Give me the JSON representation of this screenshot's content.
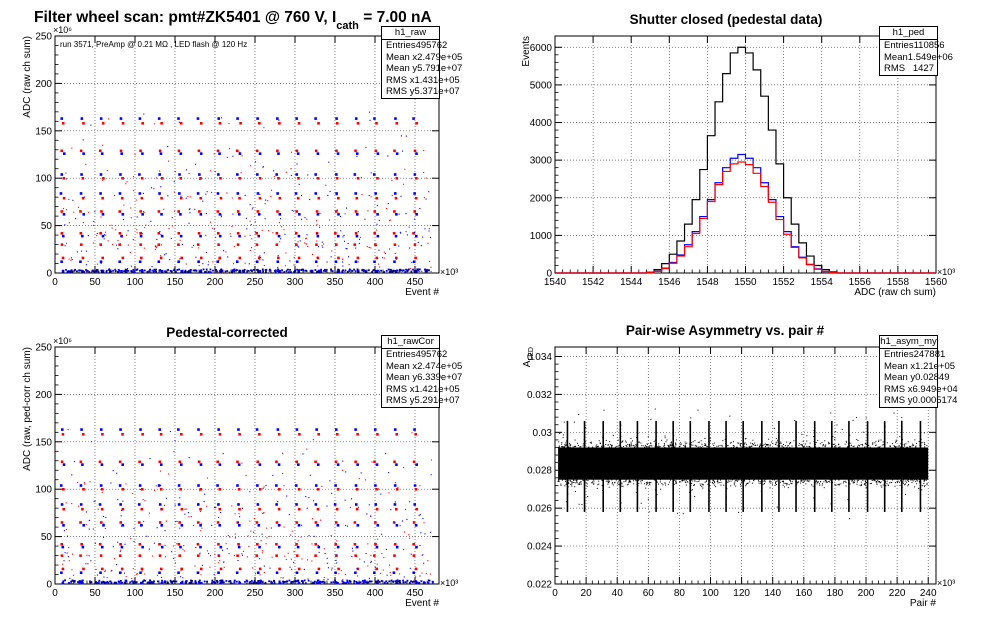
{
  "page": {
    "main_title": "Filter wheel scan: pmt#ZK5401 @   760 V, I",
    "main_title_sub": "cath",
    "main_title_tail": " = 7.00 nA"
  },
  "chart_data": [
    {
      "id": "raw",
      "type": "scatter",
      "title": "",
      "annotation": "run 3571, PreAmp @ 0.21 MΩ , LED flash @  120 Hz",
      "xlabel": "Event #",
      "ylabel": "ADC (raw ch sum)",
      "x_exponent": "×10³",
      "y_exponent": "×10⁶",
      "xlim": [
        0,
        480
      ],
      "ylim": [
        0,
        250
      ],
      "xticks": [
        0,
        50,
        100,
        150,
        200,
        250,
        300,
        350,
        400,
        450
      ],
      "yticks": [
        0,
        50,
        100,
        150,
        200,
        250
      ],
      "grid": true,
      "colors": {
        "red": "#ff0000",
        "blue": "#0000ff",
        "black": "#000000"
      },
      "levels": [
        {
          "y": 163,
          "color": "#0000ff"
        },
        {
          "y": 158,
          "color": "#ff0000"
        },
        {
          "y": 129,
          "color": "#ff0000"
        },
        {
          "y": 126,
          "color": "#0000ff"
        },
        {
          "y": 104,
          "color": "#0000ff"
        },
        {
          "y": 100,
          "color": "#ff0000"
        },
        {
          "y": 84,
          "color": "#0000ff"
        },
        {
          "y": 79,
          "color": "#ff0000"
        },
        {
          "y": 65,
          "color": "#ff0000"
        },
        {
          "y": 62,
          "color": "#0000ff"
        },
        {
          "y": 42,
          "color": "#ff0000"
        },
        {
          "y": 39,
          "color": "#0000ff"
        },
        {
          "y": 30,
          "color": "#ff0000"
        },
        {
          "y": 16,
          "color": "#ff0000"
        },
        {
          "y": 12,
          "color": "#0000ff"
        },
        {
          "y": 2,
          "color": "#0000ff"
        }
      ],
      "stats": {
        "name": "h1_raw",
        "rows": [
          [
            "Entries",
            "495762"
          ],
          [
            "Mean x",
            "2.479e+05"
          ],
          [
            "Mean y",
            "5.791e+07"
          ],
          [
            "RMS x",
            "1.431e+05"
          ],
          [
            "RMS y",
            "5.371e+07"
          ]
        ]
      }
    },
    {
      "id": "ped",
      "type": "histogram",
      "title": "Shutter closed (pedestal data)",
      "xlabel": "ADC (raw ch sum)",
      "ylabel": "Events",
      "x_exponent": "×10³",
      "xlim": [
        1540,
        1560
      ],
      "ylim": [
        0,
        6300
      ],
      "xticks": [
        1540,
        1542,
        1544,
        1546,
        1548,
        1550,
        1552,
        1554,
        1556,
        1558,
        1560
      ],
      "yticks": [
        0,
        1000,
        2000,
        3000,
        4000,
        5000,
        6000
      ],
      "grid": true,
      "bin_width": 0.4,
      "series": [
        {
          "color": "#000000",
          "x0": 1544.8,
          "values": [
            20,
            90,
            250,
            500,
            850,
            1300,
            1950,
            2750,
            3650,
            4550,
            5300,
            5850,
            6000,
            5850,
            5400,
            4700,
            3800,
            2900,
            2000,
            1300,
            800,
            450,
            200,
            90,
            30
          ]
        },
        {
          "color": "#0000ff",
          "x0": 1544.8,
          "values": [
            10,
            50,
            130,
            280,
            480,
            750,
            1100,
            1500,
            1950,
            2400,
            2800,
            3050,
            3150,
            3050,
            2800,
            2400,
            1950,
            1500,
            1100,
            700,
            420,
            230,
            110,
            40,
            15
          ]
        },
        {
          "color": "#ff0000",
          "x0": 1544.8,
          "values": [
            10,
            45,
            120,
            260,
            450,
            700,
            1050,
            1450,
            1900,
            2350,
            2700,
            2900,
            2950,
            2880,
            2650,
            2300,
            1880,
            1420,
            1030,
            680,
            400,
            220,
            100,
            40,
            15
          ]
        }
      ],
      "stats": {
        "name": "h1_ped",
        "rows": [
          [
            "Entries",
            "110856"
          ],
          [
            "Mean",
            "1.549e+06"
          ],
          [
            "RMS",
            "1427"
          ]
        ]
      }
    },
    {
      "id": "rawcor",
      "type": "scatter",
      "title": "Pedestal-corrected",
      "xlabel": "Event #",
      "ylabel": "ADC (raw, ped-corr ch sum)",
      "x_exponent": "×10³",
      "y_exponent": "×10⁶",
      "xlim": [
        0,
        480
      ],
      "ylim": [
        0,
        250
      ],
      "xticks": [
        0,
        50,
        100,
        150,
        200,
        250,
        300,
        350,
        400,
        450
      ],
      "yticks": [
        0,
        50,
        100,
        150,
        200,
        250
      ],
      "grid": true,
      "levels": [
        {
          "y": 163,
          "color": "#0000ff"
        },
        {
          "y": 158,
          "color": "#ff0000"
        },
        {
          "y": 129,
          "color": "#ff0000"
        },
        {
          "y": 126,
          "color": "#0000ff"
        },
        {
          "y": 104,
          "color": "#0000ff"
        },
        {
          "y": 100,
          "color": "#ff0000"
        },
        {
          "y": 84,
          "color": "#0000ff"
        },
        {
          "y": 79,
          "color": "#ff0000"
        },
        {
          "y": 65,
          "color": "#ff0000"
        },
        {
          "y": 62,
          "color": "#0000ff"
        },
        {
          "y": 42,
          "color": "#ff0000"
        },
        {
          "y": 39,
          "color": "#0000ff"
        },
        {
          "y": 30,
          "color": "#ff0000"
        },
        {
          "y": 16,
          "color": "#ff0000"
        },
        {
          "y": 12,
          "color": "#0000ff"
        },
        {
          "y": 1,
          "color": "#0000ff"
        }
      ],
      "stats": {
        "name": "h1_rawCor",
        "rows": [
          [
            "Entries",
            "495762"
          ],
          [
            "Mean x",
            "2.474e+05"
          ],
          [
            "Mean y",
            "6.339e+07"
          ],
          [
            "RMS x",
            "1.421e+05"
          ],
          [
            "RMS y",
            "5.291e+07"
          ]
        ]
      }
    },
    {
      "id": "asym",
      "type": "scatter",
      "title": "Pair-wise Asymmetry vs. pair #",
      "xlabel": "Pair #",
      "ylabel": "A",
      "ylabel_sub": "LED",
      "x_exponent": "×10³",
      "xlim": [
        0,
        245
      ],
      "ylim": [
        0.022,
        0.0345
      ],
      "xticks": [
        0,
        20,
        40,
        60,
        80,
        100,
        120,
        140,
        160,
        180,
        200,
        220,
        240
      ],
      "yticks": [
        0.022,
        0.024,
        0.026,
        0.028,
        0.03,
        0.032,
        0.034
      ],
      "ytick_labels": [
        "0.022",
        "0.024",
        "0.026",
        "0.028",
        "0.03",
        "0.032",
        "0.034"
      ],
      "grid": true,
      "band": {
        "xmin": 2,
        "xmax": 240,
        "ylow": 0.0275,
        "yhigh": 0.0292
      },
      "spikes": [
        8,
        19,
        31,
        42,
        53,
        65,
        76,
        87,
        99,
        110,
        121,
        133,
        144,
        155,
        167,
        178,
        189,
        201,
        212,
        223,
        235
      ],
      "stats": {
        "name": "h1_asym_my",
        "rows": [
          [
            "Entries",
            "247881"
          ],
          [
            "Mean x",
            "1.21e+05"
          ],
          [
            "Mean y",
            "0.02849"
          ],
          [
            "RMS x",
            "6.949e+04"
          ],
          [
            "RMS y",
            "0.0005174"
          ]
        ]
      }
    }
  ]
}
